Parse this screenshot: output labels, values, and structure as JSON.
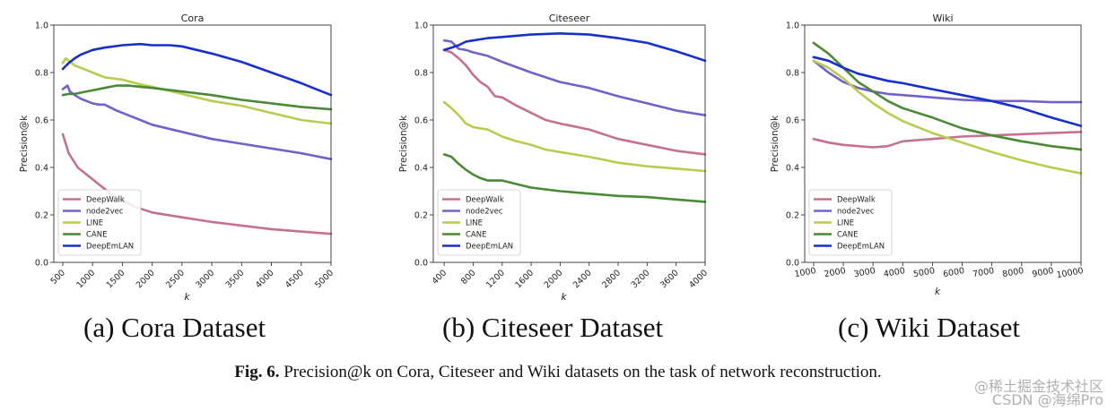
{
  "figure_caption": {
    "label": "Fig. 6.",
    "text": "Precision@k on Cora, Citeseer and Wiki datasets on the task of network reconstruction."
  },
  "subcaptions": [
    "(a)  Cora Dataset",
    "(b)  Citeseer Dataset",
    "(c)  Wiki Dataset"
  ],
  "watermark": {
    "line1": "@稀土掘金技术社区",
    "line2": "CSDN @海绵Pro"
  },
  "chart_data": [
    {
      "type": "line",
      "title": "Cora",
      "xlabel": "k",
      "ylabel": "Precision@k",
      "xlim": [
        350,
        5000
      ],
      "ylim": [
        0.0,
        1.0
      ],
      "xticks": [
        500,
        1000,
        1500,
        2000,
        2500,
        3000,
        3500,
        4000,
        4500,
        5000
      ],
      "yticks": [
        0.0,
        0.2,
        0.4,
        0.6,
        0.8,
        1.0
      ],
      "xtick_rotation": 45,
      "legend": "lower-left",
      "series": [
        {
          "name": "DeepWalk",
          "color": "#c5718d",
          "points": [
            [
              500,
              0.54
            ],
            [
              550,
              0.5
            ],
            [
              600,
              0.46
            ],
            [
              650,
              0.44
            ],
            [
              700,
              0.42
            ],
            [
              750,
              0.4
            ],
            [
              800,
              0.39
            ],
            [
              900,
              0.37
            ],
            [
              1000,
              0.35
            ],
            [
              1100,
              0.33
            ],
            [
              1200,
              0.31
            ],
            [
              1300,
              0.29
            ],
            [
              1500,
              0.26
            ],
            [
              1700,
              0.235
            ],
            [
              2000,
              0.21
            ],
            [
              2500,
              0.19
            ],
            [
              3000,
              0.17
            ],
            [
              3500,
              0.155
            ],
            [
              4000,
              0.14
            ],
            [
              4500,
              0.13
            ],
            [
              5000,
              0.12
            ]
          ]
        },
        {
          "name": "node2vec",
          "color": "#7261c9",
          "points": [
            [
              500,
              0.73
            ],
            [
              580,
              0.745
            ],
            [
              620,
              0.72
            ],
            [
              700,
              0.705
            ],
            [
              800,
              0.69
            ],
            [
              900,
              0.68
            ],
            [
              1000,
              0.67
            ],
            [
              1100,
              0.665
            ],
            [
              1200,
              0.665
            ],
            [
              1400,
              0.64
            ],
            [
              1600,
              0.62
            ],
            [
              1800,
              0.6
            ],
            [
              2000,
              0.58
            ],
            [
              2500,
              0.55
            ],
            [
              3000,
              0.52
            ],
            [
              3500,
              0.5
            ],
            [
              4000,
              0.48
            ],
            [
              4500,
              0.46
            ],
            [
              5000,
              0.435
            ]
          ]
        },
        {
          "name": "LINE",
          "color": "#b8cc4e",
          "points": [
            [
              500,
              0.84
            ],
            [
              550,
              0.86
            ],
            [
              600,
              0.85
            ],
            [
              700,
              0.83
            ],
            [
              800,
              0.82
            ],
            [
              900,
              0.81
            ],
            [
              1000,
              0.8
            ],
            [
              1200,
              0.78
            ],
            [
              1500,
              0.77
            ],
            [
              1800,
              0.75
            ],
            [
              2000,
              0.74
            ],
            [
              2500,
              0.71
            ],
            [
              3000,
              0.68
            ],
            [
              3500,
              0.66
            ],
            [
              4000,
              0.63
            ],
            [
              4500,
              0.6
            ],
            [
              5000,
              0.585
            ]
          ]
        },
        {
          "name": "CANE",
          "color": "#4a8a34",
          "points": [
            [
              500,
              0.705
            ],
            [
              600,
              0.71
            ],
            [
              700,
              0.71
            ],
            [
              800,
              0.715
            ],
            [
              1000,
              0.725
            ],
            [
              1200,
              0.735
            ],
            [
              1400,
              0.745
            ],
            [
              1600,
              0.745
            ],
            [
              1800,
              0.74
            ],
            [
              2000,
              0.735
            ],
            [
              2500,
              0.72
            ],
            [
              3000,
              0.705
            ],
            [
              3500,
              0.685
            ],
            [
              4000,
              0.67
            ],
            [
              4500,
              0.655
            ],
            [
              5000,
              0.645
            ]
          ]
        },
        {
          "name": "DeepEmLAN",
          "color": "#1630c9",
          "points": [
            [
              500,
              0.815
            ],
            [
              600,
              0.84
            ],
            [
              700,
              0.86
            ],
            [
              800,
              0.875
            ],
            [
              1000,
              0.895
            ],
            [
              1200,
              0.905
            ],
            [
              1500,
              0.915
            ],
            [
              1800,
              0.92
            ],
            [
              2000,
              0.915
            ],
            [
              2300,
              0.915
            ],
            [
              2500,
              0.91
            ],
            [
              3000,
              0.88
            ],
            [
              3500,
              0.845
            ],
            [
              4000,
              0.8
            ],
            [
              4500,
              0.755
            ],
            [
              5000,
              0.705
            ]
          ]
        }
      ]
    },
    {
      "type": "line",
      "title": "Citeseer",
      "xlabel": "k",
      "ylabel": "Precision@k",
      "xlim": [
        250,
        4000
      ],
      "ylim": [
        0.0,
        1.0
      ],
      "xticks": [
        400,
        800,
        1200,
        1600,
        2000,
        2400,
        2800,
        3200,
        3600,
        4000
      ],
      "yticks": [
        0.0,
        0.2,
        0.4,
        0.6,
        0.8,
        1.0
      ],
      "xtick_rotation": 45,
      "legend": "lower-left",
      "series": [
        {
          "name": "DeepWalk",
          "color": "#c5718d",
          "points": [
            [
              400,
              0.895
            ],
            [
              500,
              0.885
            ],
            [
              600,
              0.86
            ],
            [
              700,
              0.83
            ],
            [
              800,
              0.79
            ],
            [
              900,
              0.76
            ],
            [
              1000,
              0.74
            ],
            [
              1100,
              0.7
            ],
            [
              1200,
              0.695
            ],
            [
              1400,
              0.66
            ],
            [
              1600,
              0.63
            ],
            [
              1800,
              0.6
            ],
            [
              2000,
              0.585
            ],
            [
              2400,
              0.56
            ],
            [
              2800,
              0.52
            ],
            [
              3200,
              0.495
            ],
            [
              3600,
              0.47
            ],
            [
              4000,
              0.455
            ]
          ]
        },
        {
          "name": "node2vec",
          "color": "#7261c9",
          "points": [
            [
              400,
              0.935
            ],
            [
              500,
              0.93
            ],
            [
              600,
              0.9
            ],
            [
              700,
              0.895
            ],
            [
              800,
              0.885
            ],
            [
              1000,
              0.87
            ],
            [
              1200,
              0.845
            ],
            [
              1600,
              0.8
            ],
            [
              2000,
              0.76
            ],
            [
              2400,
              0.735
            ],
            [
              2800,
              0.7
            ],
            [
              3200,
              0.67
            ],
            [
              3600,
              0.64
            ],
            [
              4000,
              0.62
            ]
          ]
        },
        {
          "name": "LINE",
          "color": "#b8cc4e",
          "points": [
            [
              400,
              0.675
            ],
            [
              500,
              0.65
            ],
            [
              600,
              0.62
            ],
            [
              700,
              0.585
            ],
            [
              800,
              0.57
            ],
            [
              900,
              0.565
            ],
            [
              1000,
              0.56
            ],
            [
              1100,
              0.545
            ],
            [
              1200,
              0.53
            ],
            [
              1400,
              0.51
            ],
            [
              1600,
              0.495
            ],
            [
              1800,
              0.475
            ],
            [
              2000,
              0.465
            ],
            [
              2400,
              0.445
            ],
            [
              2800,
              0.42
            ],
            [
              3200,
              0.405
            ],
            [
              3600,
              0.395
            ],
            [
              4000,
              0.385
            ]
          ]
        },
        {
          "name": "CANE",
          "color": "#4a8a34",
          "points": [
            [
              400,
              0.455
            ],
            [
              500,
              0.445
            ],
            [
              600,
              0.415
            ],
            [
              700,
              0.39
            ],
            [
              800,
              0.37
            ],
            [
              900,
              0.355
            ],
            [
              1000,
              0.345
            ],
            [
              1200,
              0.345
            ],
            [
              1400,
              0.33
            ],
            [
              1600,
              0.315
            ],
            [
              2000,
              0.3
            ],
            [
              2400,
              0.29
            ],
            [
              2800,
              0.28
            ],
            [
              3200,
              0.275
            ],
            [
              3600,
              0.265
            ],
            [
              4000,
              0.255
            ]
          ]
        },
        {
          "name": "DeepEmLAN",
          "color": "#1630c9",
          "points": [
            [
              400,
              0.895
            ],
            [
              500,
              0.905
            ],
            [
              600,
              0.915
            ],
            [
              700,
              0.93
            ],
            [
              800,
              0.935
            ],
            [
              1000,
              0.945
            ],
            [
              1200,
              0.95
            ],
            [
              1600,
              0.96
            ],
            [
              2000,
              0.965
            ],
            [
              2400,
              0.96
            ],
            [
              2800,
              0.945
            ],
            [
              3200,
              0.925
            ],
            [
              3600,
              0.89
            ],
            [
              4000,
              0.85
            ]
          ]
        }
      ]
    },
    {
      "type": "line",
      "title": "Wiki",
      "xlabel": "k",
      "ylabel": "Precision@k",
      "xlim": [
        700,
        10000
      ],
      "ylim": [
        0.0,
        1.0
      ],
      "xticks": [
        1000,
        2000,
        3000,
        4000,
        5000,
        6000,
        7000,
        8000,
        9000,
        10000
      ],
      "yticks": [
        0.0,
        0.2,
        0.4,
        0.6,
        0.8,
        1.0
      ],
      "xtick_rotation": 10,
      "legend": "lower-left",
      "series": [
        {
          "name": "DeepWalk",
          "color": "#c5718d",
          "points": [
            [
              1000,
              0.52
            ],
            [
              1500,
              0.505
            ],
            [
              2000,
              0.495
            ],
            [
              2500,
              0.49
            ],
            [
              3000,
              0.485
            ],
            [
              3500,
              0.49
            ],
            [
              4000,
              0.51
            ],
            [
              4500,
              0.515
            ],
            [
              5000,
              0.52
            ],
            [
              6000,
              0.53
            ],
            [
              7000,
              0.535
            ],
            [
              8000,
              0.54
            ],
            [
              9000,
              0.545
            ],
            [
              10000,
              0.55
            ]
          ]
        },
        {
          "name": "node2vec",
          "color": "#7261c9",
          "points": [
            [
              1000,
              0.85
            ],
            [
              1500,
              0.8
            ],
            [
              2000,
              0.76
            ],
            [
              2500,
              0.735
            ],
            [
              3000,
              0.72
            ],
            [
              3500,
              0.71
            ],
            [
              4000,
              0.705
            ],
            [
              5000,
              0.695
            ],
            [
              6000,
              0.685
            ],
            [
              7000,
              0.68
            ],
            [
              8000,
              0.68
            ],
            [
              9000,
              0.675
            ],
            [
              10000,
              0.675
            ]
          ]
        },
        {
          "name": "LINE",
          "color": "#b8cc4e",
          "points": [
            [
              1000,
              0.85
            ],
            [
              1500,
              0.82
            ],
            [
              2000,
              0.775
            ],
            [
              2500,
              0.72
            ],
            [
              3000,
              0.67
            ],
            [
              3500,
              0.63
            ],
            [
              4000,
              0.595
            ],
            [
              5000,
              0.545
            ],
            [
              6000,
              0.505
            ],
            [
              7000,
              0.465
            ],
            [
              8000,
              0.43
            ],
            [
              9000,
              0.4
            ],
            [
              10000,
              0.375
            ]
          ]
        },
        {
          "name": "CANE",
          "color": "#4a8a34",
          "points": [
            [
              1000,
              0.925
            ],
            [
              1500,
              0.88
            ],
            [
              2000,
              0.82
            ],
            [
              2500,
              0.76
            ],
            [
              3000,
              0.72
            ],
            [
              3500,
              0.68
            ],
            [
              4000,
              0.65
            ],
            [
              5000,
              0.61
            ],
            [
              6000,
              0.565
            ],
            [
              7000,
              0.535
            ],
            [
              8000,
              0.51
            ],
            [
              9000,
              0.49
            ],
            [
              10000,
              0.475
            ]
          ]
        },
        {
          "name": "DeepEmLAN",
          "color": "#1630c9",
          "points": [
            [
              1000,
              0.865
            ],
            [
              1500,
              0.85
            ],
            [
              2000,
              0.82
            ],
            [
              2500,
              0.795
            ],
            [
              3000,
              0.78
            ],
            [
              3500,
              0.765
            ],
            [
              4000,
              0.755
            ],
            [
              5000,
              0.73
            ],
            [
              6000,
              0.705
            ],
            [
              7000,
              0.68
            ],
            [
              8000,
              0.65
            ],
            [
              9000,
              0.61
            ],
            [
              10000,
              0.575
            ]
          ]
        }
      ]
    }
  ]
}
